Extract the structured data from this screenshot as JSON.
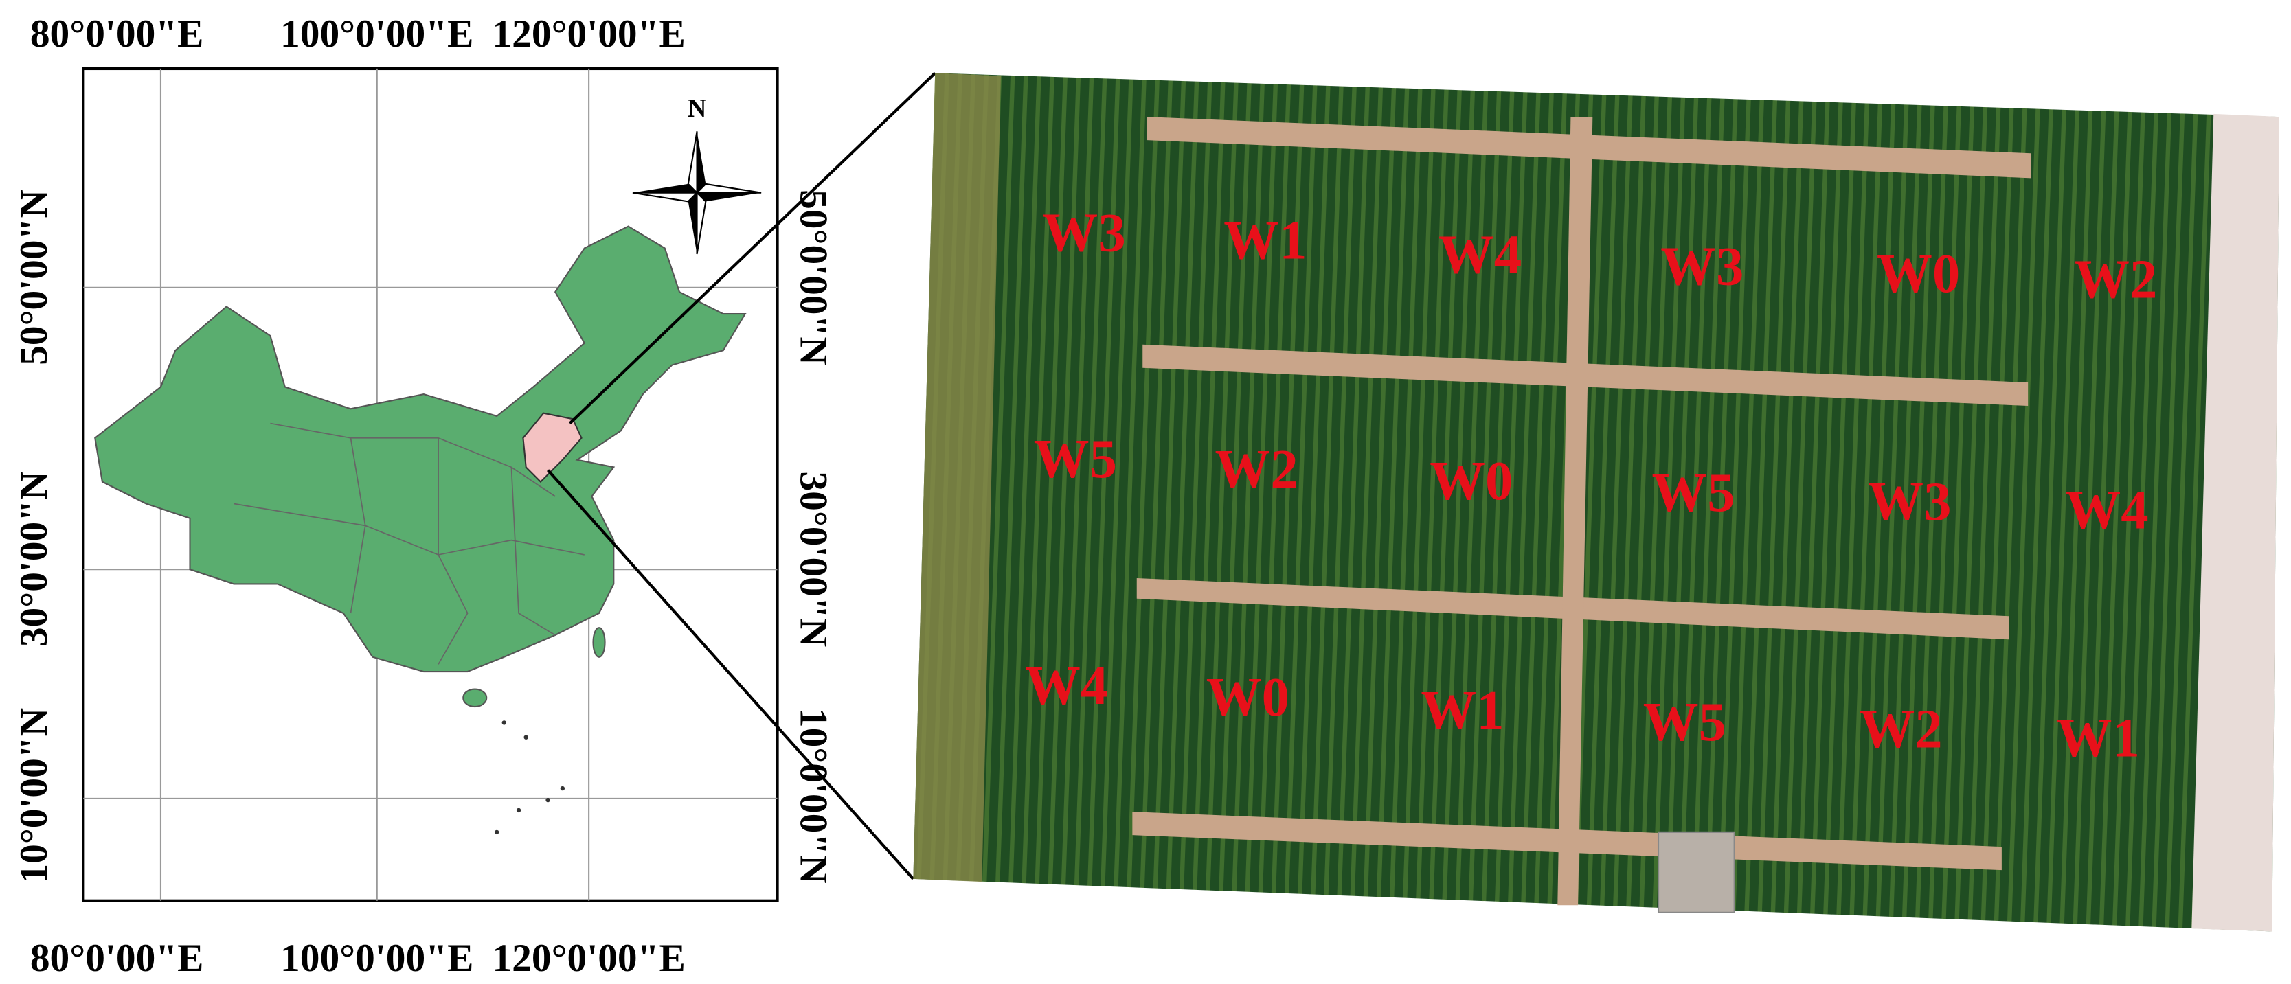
{
  "map": {
    "top_labels": [
      "80°0'00\"E",
      "100°0'00\"E",
      "120°0'00\"E"
    ],
    "bottom_labels": [
      "80°0'00\"E",
      "100°0'00\"E",
      "120°0'00\"E"
    ],
    "left_labels": [
      "50°0'00\"N",
      "30°0'00\"N",
      "10°0'00\"N"
    ],
    "right_labels": [
      "50°0'00\"N",
      "30°0'00\"N",
      "10°0'00\"N"
    ],
    "north": "N"
  },
  "field": {
    "plots": [
      [
        "W3",
        "W1",
        "W4",
        "W3",
        "W0",
        "W2"
      ],
      [
        "W5",
        "W2",
        "W0",
        "W5",
        "W3",
        "W4"
      ],
      [
        "W4",
        "W0",
        "W1",
        "W5",
        "W2",
        "W1"
      ]
    ]
  }
}
